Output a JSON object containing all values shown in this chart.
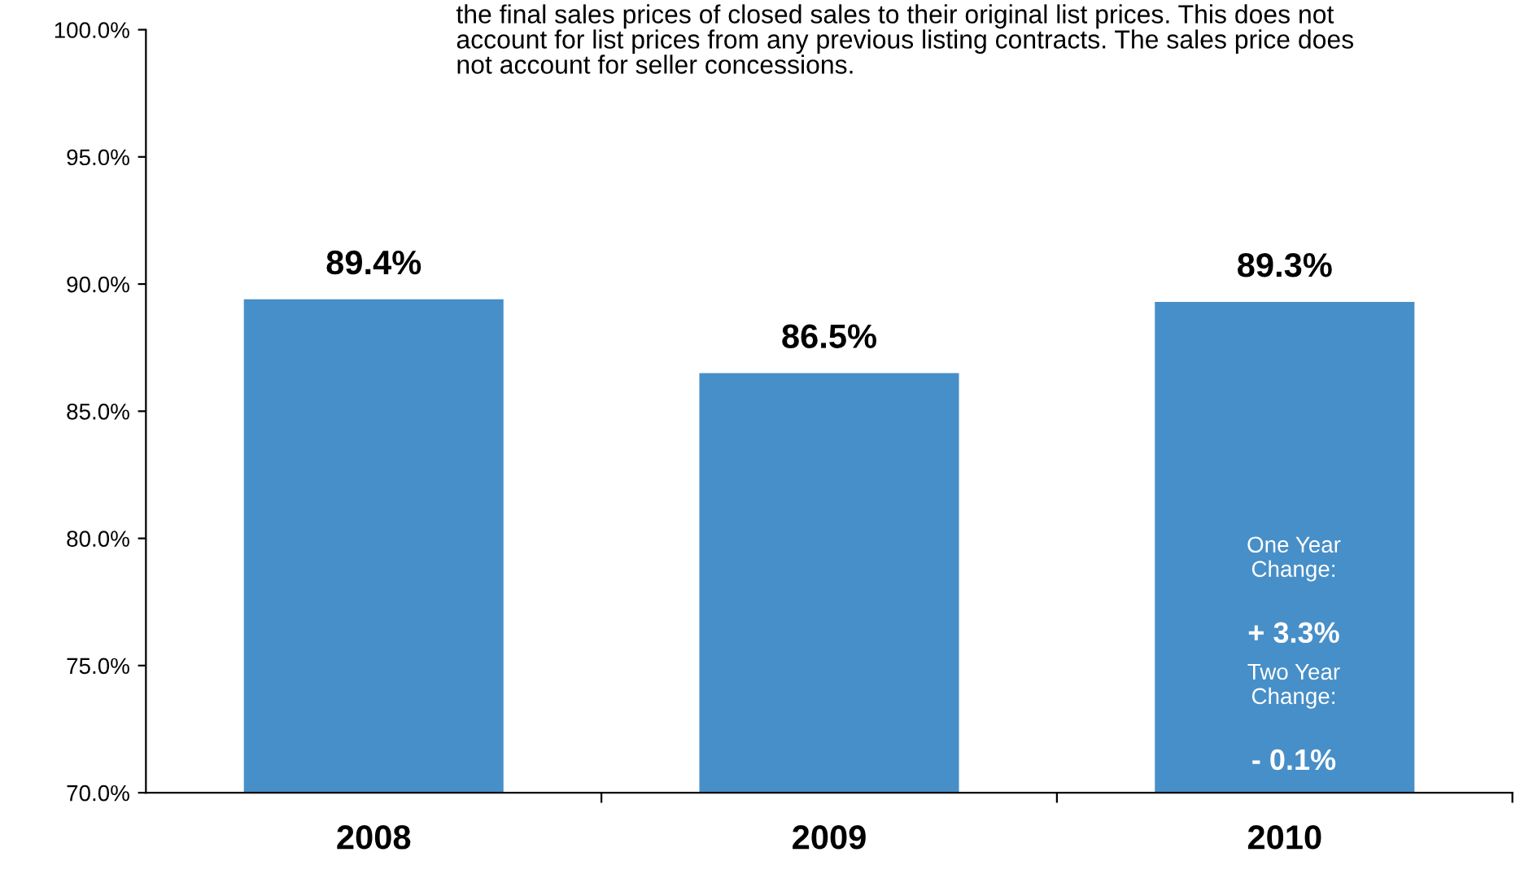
{
  "chart_data": {
    "type": "bar",
    "categories": [
      "2008",
      "2009",
      "2010"
    ],
    "values": [
      89.4,
      86.5,
      89.3
    ],
    "value_labels": [
      "89.4%",
      "86.5%",
      "89.3%"
    ],
    "color": "#478fc8",
    "ylim": [
      70,
      100
    ],
    "yticks": [
      {
        "value": 70,
        "label": "70.0%"
      },
      {
        "value": 75,
        "label": "75.0%"
      },
      {
        "value": 80,
        "label": "80.0%"
      },
      {
        "value": 85,
        "label": "85.0%"
      },
      {
        "value": 90,
        "label": "90.0%"
      },
      {
        "value": 95,
        "label": "95.0%"
      },
      {
        "value": 100,
        "label": "100.0%"
      }
    ],
    "grid": false,
    "legend": false,
    "annotations": [
      "the final sales prices of closed sales to their original list prices. This does not\naccount for list prices from any previous listing contracts. The sales price does\nnot account for seller concessions.",
      "One Year\nChange:",
      "+ 3.3%",
      "Two Year\nChange:",
      "- 0.1%"
    ]
  }
}
